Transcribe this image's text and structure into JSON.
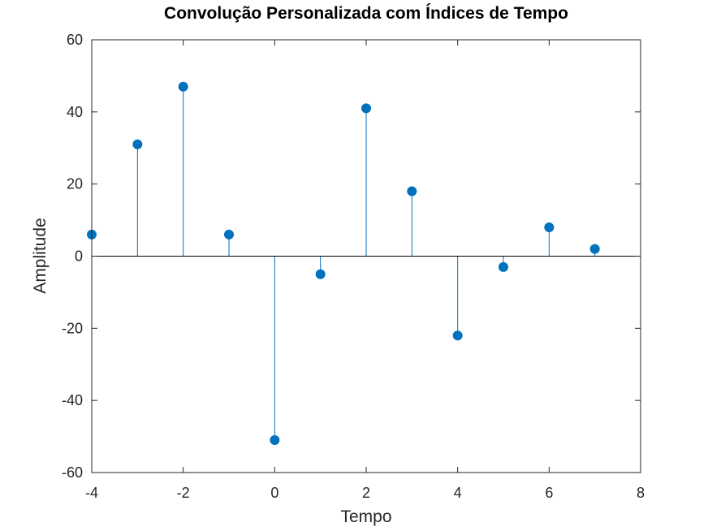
{
  "chart_data": {
    "type": "stem",
    "title": "Convolução Personalizada com Índices de Tempo",
    "xlabel": "Tempo",
    "ylabel": "Amplitude",
    "xlim": [
      -4,
      8
    ],
    "ylim": [
      -60,
      60
    ],
    "xticks": [
      -4,
      -2,
      0,
      2,
      4,
      6,
      8
    ],
    "yticks": [
      -60,
      -40,
      -20,
      0,
      20,
      40,
      60
    ],
    "baseline": 0,
    "grid": false,
    "series": [
      {
        "color": "#0072bd",
        "x": [
          -4,
          -3,
          -2,
          -1,
          0,
          1,
          2,
          3,
          4,
          5,
          6,
          7
        ],
        "y": [
          6,
          31,
          47,
          6,
          -51,
          -5,
          41,
          18,
          -22,
          -3,
          8,
          2
        ]
      }
    ]
  }
}
